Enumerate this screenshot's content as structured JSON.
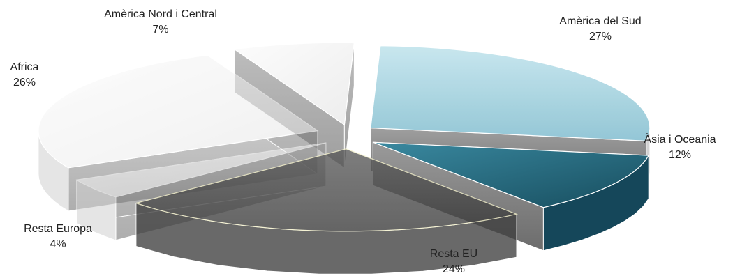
{
  "chart_data": {
    "type": "pie",
    "title": "",
    "slices": [
      {
        "name": "Amèrica del Sud",
        "value": 27,
        "label": "27%",
        "color": "#a9d4df"
      },
      {
        "name": "Àsia i Oceania",
        "value": 12,
        "label": "12%",
        "color": "#1d5a6e"
      },
      {
        "name": "Resta EU",
        "value": 24,
        "label": "24%",
        "color": "#4a4a4a"
      },
      {
        "name": "Resta Europa",
        "value": 4,
        "label": "4%",
        "color": "#d6d6d6"
      },
      {
        "name": "Africa",
        "value": 26,
        "label": "26%",
        "color": "#eeeeee"
      },
      {
        "name": "Amèrica Nord i Central",
        "value": 7,
        "label": "7%",
        "color": "#dce8ee"
      }
    ],
    "style": "3d-exploded"
  }
}
